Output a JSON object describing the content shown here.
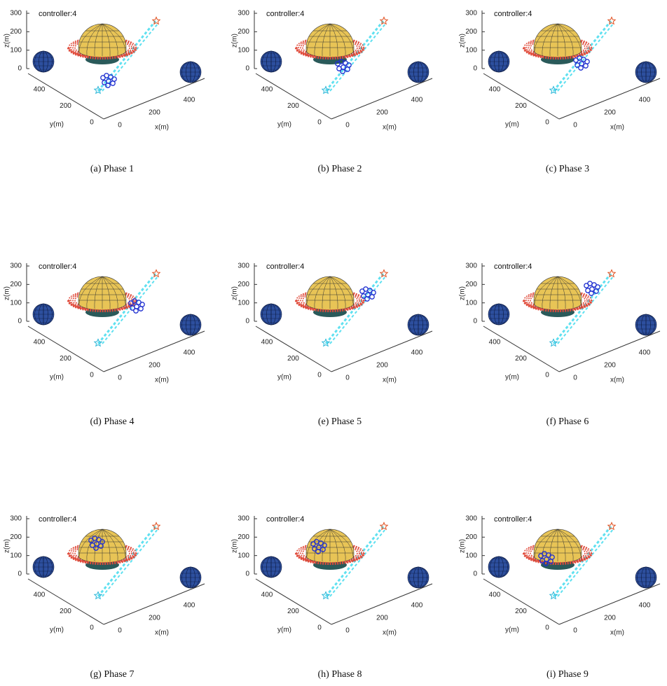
{
  "annotation": "controller:4",
  "axes": {
    "xlabel": "x(m)",
    "ylabel": "y(m)",
    "zlabel": "z(m)",
    "xticks": [
      0,
      200,
      400
    ],
    "yticks": [
      0,
      200,
      400
    ],
    "zticks": [
      0,
      100,
      200,
      300
    ]
  },
  "captions": [
    "(a)  Phase  1",
    "(b)  Phase  2",
    "(c)  Phase  3",
    "(d)  Phase  4",
    "(e)  Phase  5",
    "(f)  Phase  6",
    "(g)  Phase  7",
    "(h)  Phase  8",
    "(i)  Phase  9"
  ]
}
